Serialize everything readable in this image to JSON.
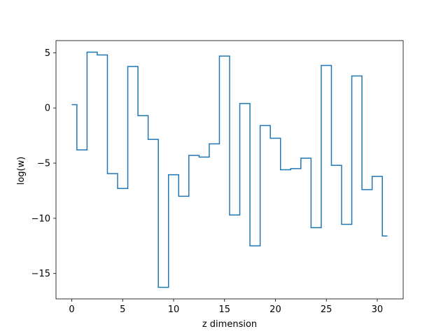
{
  "chart_data": {
    "type": "line",
    "drawstyle": "steps-mid",
    "title": "",
    "xlabel": "z dimension",
    "ylabel": "log(w)",
    "xlim": [
      -1.55,
      32.55
    ],
    "ylim": [
      -17.3,
      6.1
    ],
    "xticks": [
      0,
      5,
      10,
      15,
      20,
      25,
      30
    ],
    "yticks": [
      5,
      0,
      -5,
      -10,
      -15
    ],
    "ytick_labels": [
      "5",
      "0",
      "−5",
      "−10",
      "−15"
    ],
    "line_color": "#1f77b4",
    "grid": false,
    "x": [
      0,
      1,
      2,
      3,
      4,
      5,
      6,
      7,
      8,
      9,
      10,
      11,
      12,
      13,
      14,
      15,
      16,
      17,
      18,
      19,
      20,
      21,
      22,
      23,
      24,
      25,
      26,
      27,
      28,
      29,
      30,
      31
    ],
    "y": [
      0.3,
      -3.8,
      5.05,
      4.8,
      -5.95,
      -7.3,
      3.75,
      -0.7,
      -2.85,
      -16.25,
      -6.05,
      -8.0,
      -4.3,
      -4.45,
      -3.25,
      4.7,
      -9.7,
      0.4,
      -12.5,
      -1.6,
      -2.75,
      -5.6,
      -5.5,
      -4.55,
      -10.85,
      3.85,
      -5.2,
      -10.55,
      2.9,
      -7.4,
      -6.2,
      -11.6
    ]
  }
}
